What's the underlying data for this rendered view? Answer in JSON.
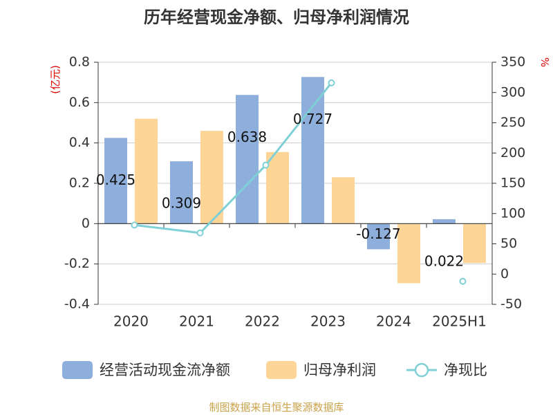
{
  "chart_data": {
    "type": "bar",
    "title": "历年经营现金净额、归母净利润情况",
    "source": "制图数据来自恒生聚源数据库",
    "categories": [
      "2020",
      "2021",
      "2022",
      "2023",
      "2024",
      "2025H1"
    ],
    "y_left": {
      "unit_label": "(亿元)",
      "ylim": [
        -0.4,
        0.8
      ],
      "ticks": [
        -0.4,
        -0.2,
        0,
        0.2,
        0.4,
        0.6,
        0.8
      ],
      "tick_labels": [
        "-0.4",
        "-0.2",
        "0",
        "0.2",
        "0.4",
        "0.6",
        "0.8"
      ]
    },
    "y_right": {
      "unit_label": "%",
      "ylim": [
        -50,
        350
      ],
      "ticks": [
        -50,
        0,
        50,
        100,
        150,
        200,
        250,
        300,
        350
      ],
      "tick_labels": [
        "-50",
        "0",
        "50",
        "100",
        "150",
        "200",
        "250",
        "300",
        "350"
      ]
    },
    "grid": true,
    "legend_position": "bottom",
    "series": [
      {
        "name": "经营活动现金流净额",
        "type": "bar",
        "axis": "left",
        "color": "#8eaedb",
        "values": [
          0.425,
          0.309,
          0.638,
          0.727,
          -0.127,
          0.022
        ],
        "data_labels": [
          "0.425",
          "0.309",
          "0.638",
          "0.727",
          "-0.127",
          "0.022"
        ]
      },
      {
        "name": "归母净利润",
        "type": "bar",
        "axis": "left",
        "color": "#fdd597",
        "values": [
          0.52,
          0.46,
          0.355,
          0.23,
          -0.295,
          -0.195
        ]
      },
      {
        "name": "净现比",
        "type": "line",
        "axis": "right",
        "color": "#7fd0d6",
        "values": [
          81,
          68,
          180,
          316,
          null,
          -12
        ]
      }
    ]
  }
}
